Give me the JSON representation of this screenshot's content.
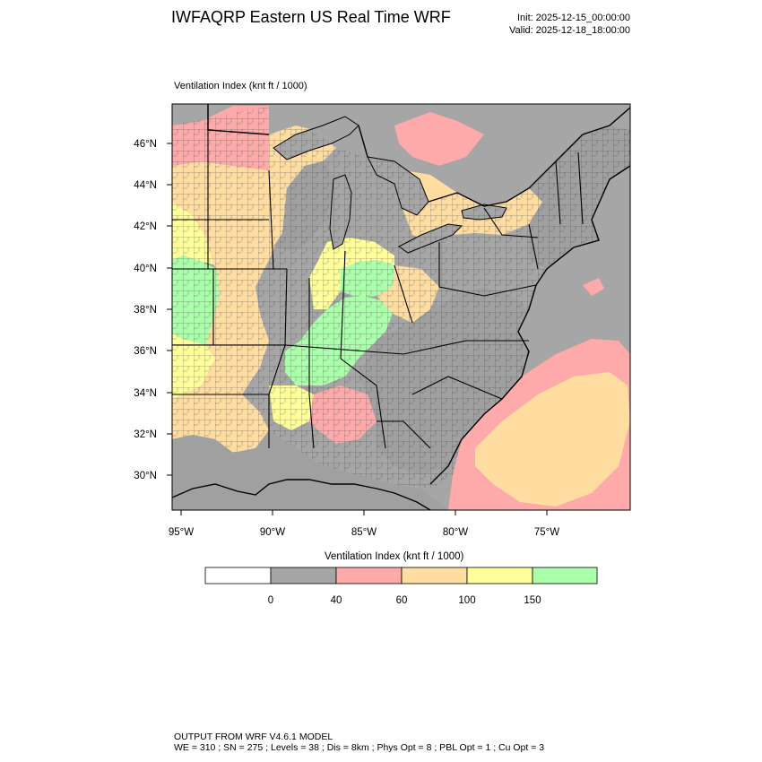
{
  "header": {
    "title": "IWFAQRP Eastern US Real Time WRF",
    "init": "Init: 2025-12-15_00:00:00",
    "valid": "Valid: 2025-12-18_18:00:00"
  },
  "map": {
    "subtitle": "Ventilation Index   (knt ft / 1000)",
    "lat_labels": [
      "46°N",
      "44°N",
      "42°N",
      "40°N",
      "38°N",
      "36°N",
      "34°N",
      "32°N",
      "30°N"
    ],
    "lon_labels": [
      "95°W",
      "90°W",
      "85°W",
      "80°W",
      "75°W"
    ],
    "colors": {
      "no_data": "#aaaaaa",
      "cat_0_40": "#a0a0a0",
      "cat_40_60": "#ffaaaa",
      "cat_60_100": "#ffdca0",
      "cat_100_150": "#ffff99",
      "cat_150_plus": "#aaffaa",
      "water": "#a6a6a6"
    }
  },
  "colorbar": {
    "title": "Ventilation Index  (knt ft / 1000)",
    "bins": [
      {
        "color": "#ffffff"
      },
      {
        "color": "#a6a6a6"
      },
      {
        "color": "#ffaaaa"
      },
      {
        "color": "#ffdca0"
      },
      {
        "color": "#ffff99"
      },
      {
        "color": "#aaffaa"
      }
    ],
    "ticks": [
      "0",
      "40",
      "60",
      "100",
      "150"
    ]
  },
  "footer": {
    "line1": "OUTPUT FROM WRF V4.6.1 MODEL",
    "line2": "WE = 310 ; SN = 275 ; Levels = 38 ; Dis = 8km ; Phys Opt = 8 ; PBL Opt = 1 ; Cu Opt = 3"
  }
}
